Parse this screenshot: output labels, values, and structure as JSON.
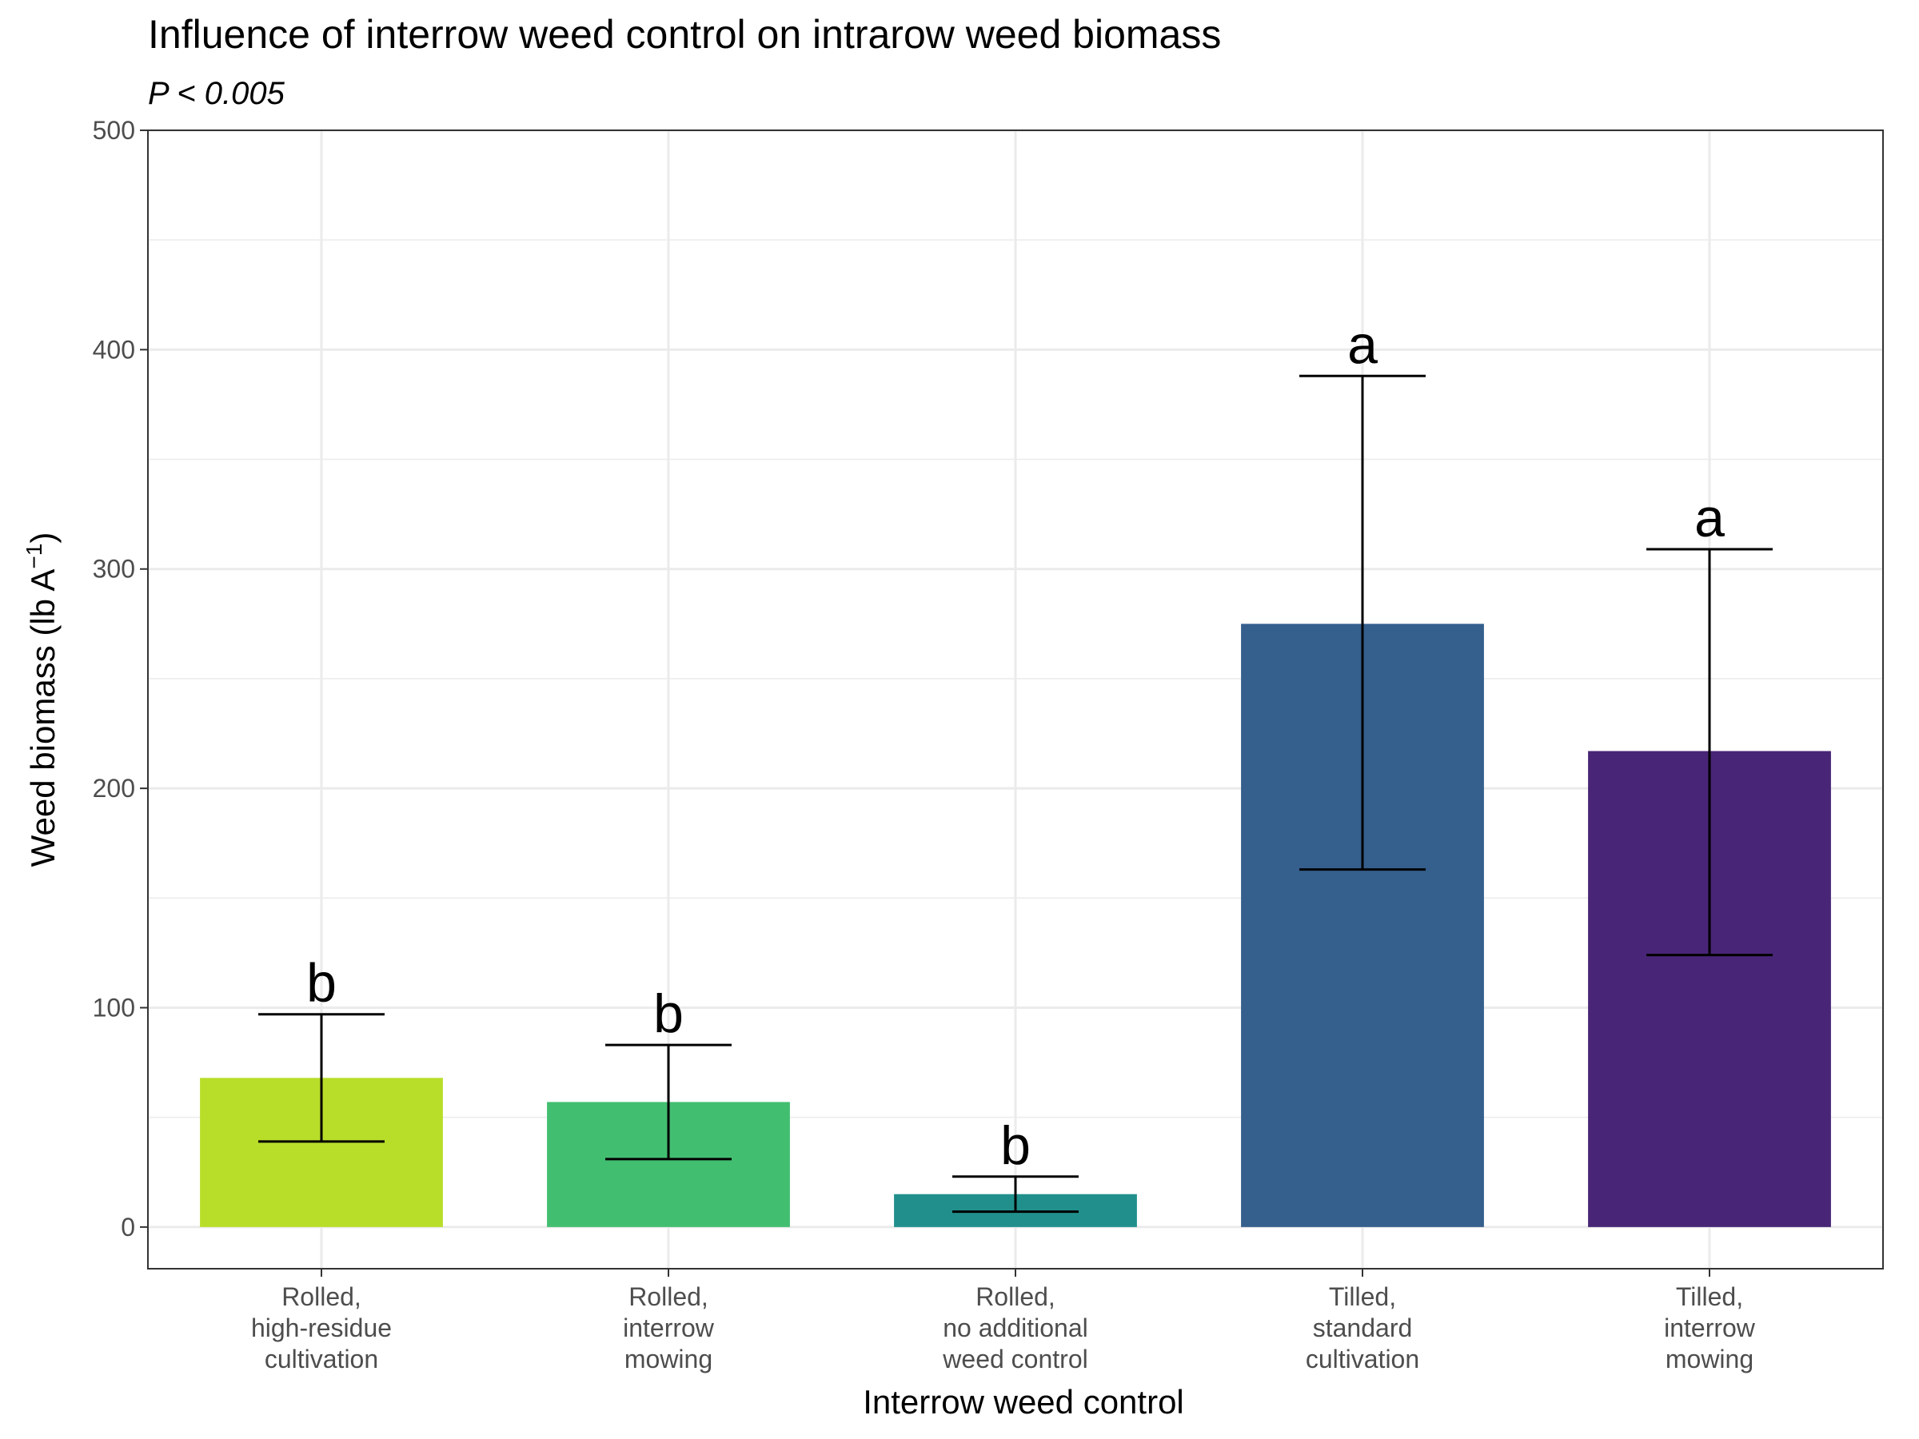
{
  "chart_data": {
    "type": "bar",
    "title": "Influence of interrow weed control on intrarow weed biomass",
    "subtitle": "P < 0.005",
    "xlabel": "Interrow weed control",
    "ylabel_main": "Weed biomass (lb A",
    "ylabel_sup": "−1",
    "ylabel_close": ")",
    "ylim": [
      -19,
      500
    ],
    "yticks": [
      0,
      100,
      200,
      300,
      400,
      500
    ],
    "ytick_labels": [
      "0",
      "100",
      "200",
      "300",
      "400",
      "500"
    ],
    "y_minor": [
      50,
      150,
      250,
      350,
      450
    ],
    "grid": true,
    "legend": "none",
    "categories": [
      [
        "Rolled,",
        "high-residue",
        "cultivation"
      ],
      [
        "Rolled,",
        "interrow",
        "mowing"
      ],
      [
        "Rolled,",
        "no additional",
        "weed control"
      ],
      [
        "Tilled,",
        "standard",
        "cultivation"
      ],
      [
        "Tilled,",
        "interrow",
        "mowing"
      ]
    ],
    "values": [
      68,
      57,
      15,
      275,
      217
    ],
    "error_low": [
      39,
      31,
      7,
      163,
      124
    ],
    "error_high": [
      97,
      83,
      23,
      388,
      309
    ],
    "group_letters": [
      "b",
      "b",
      "b",
      "a",
      "a"
    ],
    "colors": [
      "#B8DE29",
      "#42BE71",
      "#21908C",
      "#355F8D",
      "#482576"
    ]
  }
}
